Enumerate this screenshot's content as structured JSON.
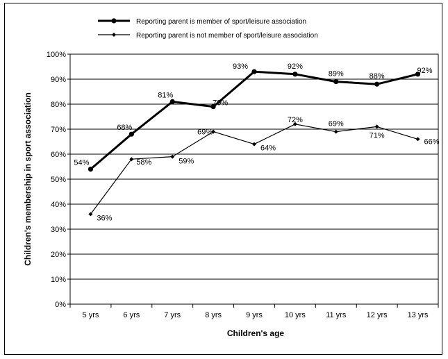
{
  "chart_data": {
    "type": "line",
    "title": "",
    "xlabel": "Children's age",
    "ylabel": "Children's membership in sport association",
    "categories": [
      "5 yrs",
      "6 yrs",
      "7 yrs",
      "8 yrs",
      "9 yrs",
      "10 yrs",
      "11 yrs",
      "12 yrs",
      "13 yrs"
    ],
    "ylim": [
      0,
      100
    ],
    "yticks": [
      "0%",
      "10%",
      "20%",
      "30%",
      "40%",
      "50%",
      "60%",
      "70%",
      "80%",
      "90%",
      "100%"
    ],
    "grid": "horizontal",
    "legend_position": "top",
    "series": [
      {
        "name": "Reporting parent is member of sport/leisure association",
        "values": [
          54,
          68,
          81,
          79,
          93,
          92,
          89,
          88,
          92
        ],
        "labels": [
          "54%",
          "68%",
          "81%",
          "79%",
          "93%",
          "92%",
          "89%",
          "88%",
          "92%"
        ],
        "marker": "circle",
        "color": "#000000"
      },
      {
        "name": "Reporting parent is not member of sport/leisure association",
        "values": [
          36,
          58,
          59,
          69,
          64,
          72,
          69,
          71,
          66
        ],
        "labels": [
          "36%",
          "58%",
          "59%",
          "69%",
          "64%",
          "72%",
          "69%",
          "71%",
          "66%"
        ],
        "marker": "diamond",
        "color": "#000000"
      }
    ]
  }
}
